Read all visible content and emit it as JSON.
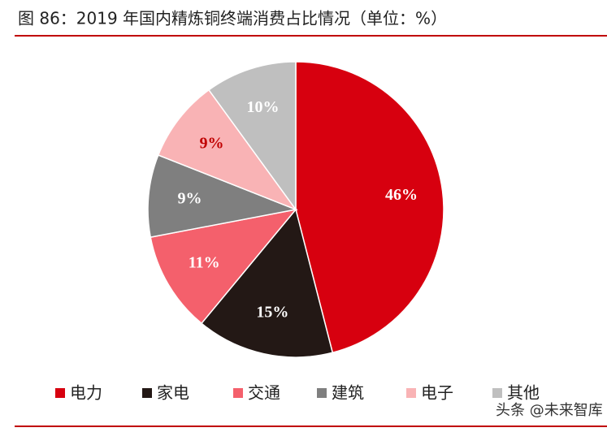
{
  "chart_data": {
    "type": "pie",
    "title": "图 86：2019 年国内精炼铜终端消费占比情况（单位：%）",
    "categories": [
      "电力",
      "家电",
      "交通",
      "建筑",
      "电子",
      "其他"
    ],
    "values": [
      46,
      15,
      11,
      9,
      9,
      10
    ],
    "value_labels": [
      "46%",
      "15%",
      "11%",
      "9%",
      "9%",
      "10%"
    ],
    "colors": [
      "#d7000f",
      "#231815",
      "#f4606c",
      "#7f7f7f",
      "#f9b3b5",
      "#bfbfbf"
    ],
    "legend": "bottom"
  },
  "watermark": "头条 @未来智库"
}
